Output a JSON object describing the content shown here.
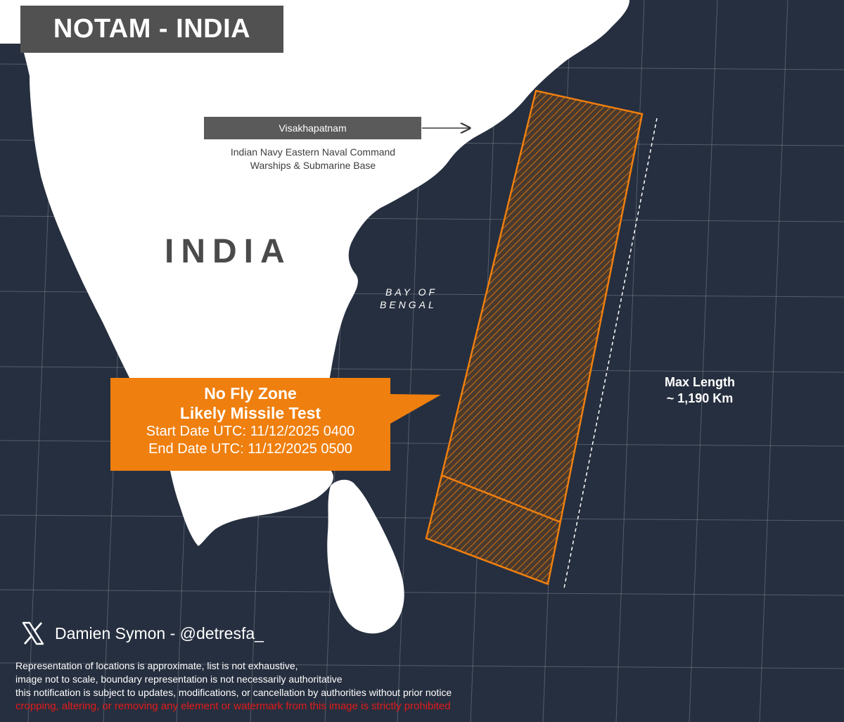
{
  "title": "NOTAM - INDIA",
  "city": {
    "name": "Visakhapatnam",
    "desc_line1": "Indian Navy Eastern Naval Command",
    "desc_line2": "Warships & Submarine Base"
  },
  "country_label": "INDIA",
  "sea_label": {
    "line1": "BAY OF",
    "line2": "BENGAL"
  },
  "callout": {
    "heading": "No Fly Zone",
    "subheading": "Likely Missile Test",
    "start": "Start Date UTC: 11/12/2025 0400",
    "end": "End Date UTC: 11/12/2025 0500"
  },
  "max_length": {
    "title": "Max Length",
    "value": "~ 1,190 Km"
  },
  "credit": "Damien Symon - @detresfa_",
  "disclaimer": [
    "Representation of locations is approximate, list is not exhaustive,",
    "image not to scale, boundary representation is not necessarily authoritative",
    "this notification is subject to updates, modifications, or cancellation by authorities without prior notice"
  ],
  "warning": "cropping, altering, or removing any element or watermark from this image is strictly prohibited",
  "colors": {
    "sea": "#262f3f",
    "land": "#ffffff",
    "accent": "#ef7f0e",
    "title_bg": "#515151",
    "warning": "#e21b1b"
  }
}
